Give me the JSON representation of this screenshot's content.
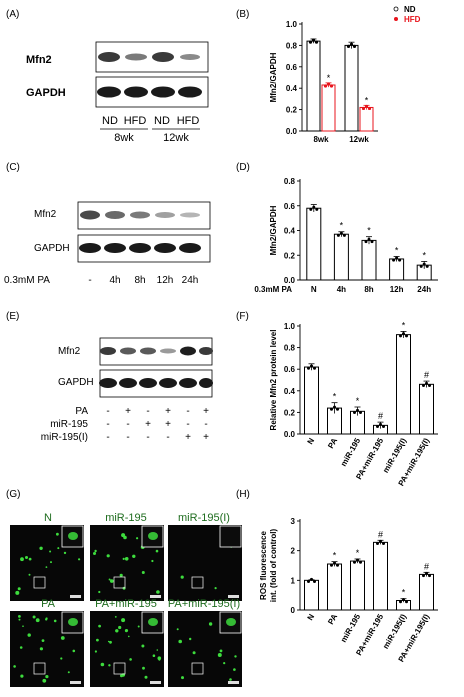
{
  "panels": {
    "A": {
      "letter": "(A)",
      "bands": [
        "Mfn2",
        "GAPDH"
      ],
      "lanes": [
        "ND",
        "HFD",
        "ND",
        "HFD"
      ],
      "groups": [
        "8wk",
        "12wk"
      ]
    },
    "C": {
      "letter": "(C)",
      "bands": [
        "Mfn2",
        "GAPDH"
      ],
      "row_label": "0.3mM PA",
      "lanes": [
        "-",
        "4h",
        "8h",
        "12h",
        "24h"
      ]
    },
    "E": {
      "letter": "(E)",
      "bands": [
        "Mfn2",
        "GAPDH"
      ],
      "rows": [
        {
          "label": "PA",
          "marks": [
            "-",
            "+",
            "-",
            "+",
            "-",
            "+"
          ]
        },
        {
          "label": "miR-195",
          "marks": [
            "-",
            "-",
            "+",
            "+",
            "-",
            "-"
          ]
        },
        {
          "label": "miR-195(I)",
          "marks": [
            "-",
            "-",
            "-",
            "-",
            "+",
            "+"
          ]
        }
      ]
    },
    "G": {
      "letter": "(G)",
      "labels": [
        "N",
        "miR-195",
        "miR-195(I)",
        "PA",
        "PA+miR-195",
        "PA+miR-195(I)"
      ]
    }
  },
  "chart_data": [
    {
      "panel": "(B)",
      "type": "bar",
      "ylabel": "Mfn2/GAPDH",
      "ylim": [
        0,
        1.0
      ],
      "yticks": [
        "0.0",
        "0.2",
        "0.4",
        "0.6",
        "0.8",
        "1.0"
      ],
      "categories": [
        "8wk",
        "12wk"
      ],
      "legend": {
        "position": "top-right",
        "items": [
          "ND",
          "HFD"
        ]
      },
      "series": [
        {
          "name": "ND",
          "color": "#000000",
          "values": [
            0.84,
            0.8
          ],
          "errors": [
            0.02,
            0.03
          ],
          "sig": [
            "",
            ""
          ]
        },
        {
          "name": "HFD",
          "color": "#e8141c",
          "values": [
            0.43,
            0.22
          ],
          "errors": [
            0.02,
            0.02
          ],
          "sig": [
            "*",
            "*"
          ]
        }
      ]
    },
    {
      "panel": "(D)",
      "type": "bar",
      "ylabel": "Mfn2/GAPDH",
      "xlabel": "0.3mM PA",
      "ylim": [
        0,
        0.8
      ],
      "yticks": [
        "0.0",
        "0.2",
        "0.4",
        "0.6",
        "0.8"
      ],
      "categories": [
        "N",
        "4h",
        "8h",
        "12h",
        "24h"
      ],
      "values": [
        0.58,
        0.37,
        0.32,
        0.17,
        0.12
      ],
      "errors": [
        0.03,
        0.02,
        0.03,
        0.02,
        0.03
      ],
      "sig": [
        "",
        "*",
        "*",
        "*",
        "*"
      ]
    },
    {
      "panel": "(F)",
      "type": "bar",
      "ylabel": "Relative Mfn2 protein level",
      "ylim": [
        0,
        1.0
      ],
      "yticks": [
        "0.0",
        "0.2",
        "0.4",
        "0.6",
        "0.8",
        "1.0"
      ],
      "categories": [
        "N",
        "PA",
        "miR-195",
        "PA+miR-195",
        "miR-195(I)",
        "PA+miR-195(I)"
      ],
      "values": [
        0.62,
        0.24,
        0.21,
        0.08,
        0.92,
        0.46
      ],
      "errors": [
        0.03,
        0.05,
        0.04,
        0.03,
        0.03,
        0.03
      ],
      "sig": [
        "",
        "*",
        "*",
        "#",
        "*",
        "#"
      ]
    },
    {
      "panel": "(H)",
      "type": "bar",
      "ylabel": "ROS fluorescence int. (fold of control)",
      "ylim": [
        0,
        3
      ],
      "yticks": [
        "0",
        "1",
        "2",
        "3"
      ],
      "categories": [
        "N",
        "PA",
        "miR-195",
        "PA+miR-195",
        "miR-195(I)",
        "PA+miR-195(I)"
      ],
      "values": [
        1.0,
        1.55,
        1.65,
        2.28,
        0.32,
        1.2
      ],
      "errors": [
        0.02,
        0.08,
        0.07,
        0.07,
        0.06,
        0.07
      ],
      "sig": [
        "",
        "*",
        "*",
        "#",
        "*",
        "#"
      ]
    }
  ]
}
